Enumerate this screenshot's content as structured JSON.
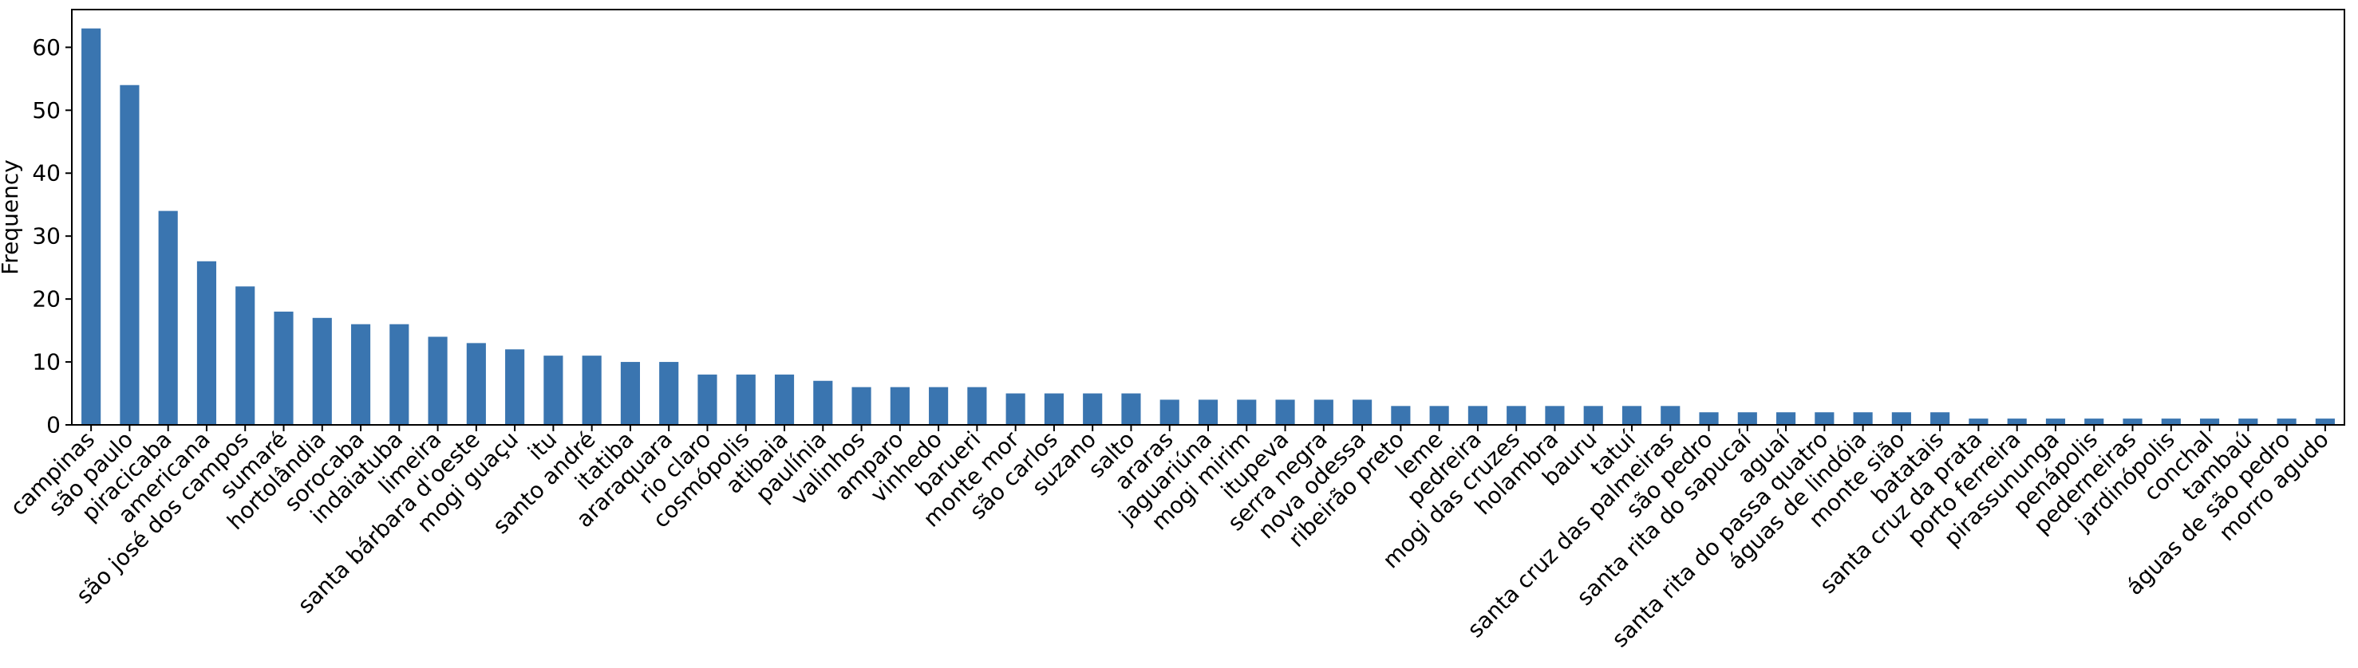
{
  "chart_data": {
    "type": "bar",
    "title": "",
    "xlabel": "",
    "ylabel": "Frequency",
    "ylim": [
      0,
      66
    ],
    "yticks": [
      0,
      10,
      20,
      30,
      40,
      50,
      60
    ],
    "grid": false,
    "bar_color": "#3a75b0",
    "categories": [
      "campinas",
      "são paulo",
      "piracicaba",
      "americana",
      "são josé dos campos",
      "sumaré",
      "hortolândia",
      "sorocaba",
      "indaiatuba",
      "limeira",
      "santa bárbara d'oeste",
      "mogi guaçu",
      "itu",
      "santo andré",
      "itatiba",
      "araraquara",
      "rio claro",
      "cosmópolis",
      "atibaia",
      "paulínia",
      "valinhos",
      "amparo",
      "vinhedo",
      "barueri",
      "monte mor",
      "são carlos",
      "suzano",
      "salto",
      "araras",
      "jaguariúna",
      "mogi mirim",
      "itupeva",
      "serra negra",
      "nova odessa",
      "ribeirão preto",
      "leme",
      "pedreira",
      "mogi das cruzes",
      "holambra",
      "bauru",
      "tatuí",
      "santa cruz das palmeiras",
      "são pedro",
      "santa rita do sapucaí",
      "aguaí",
      "santa rita do passa quatro",
      "águas de lindóia",
      "monte sião",
      "batatais",
      "santa cruz da prata",
      "porto ferreira",
      "pirassununga",
      "penápolis",
      "pederneiras",
      "jardinópolis",
      "conchal",
      "tambaú",
      "águas de são pedro",
      "morro agudo"
    ],
    "values": [
      63,
      54,
      34,
      26,
      22,
      18,
      17,
      16,
      16,
      14,
      13,
      12,
      11,
      11,
      10,
      10,
      8,
      8,
      8,
      7,
      6,
      6,
      6,
      6,
      5,
      5,
      5,
      5,
      4,
      4,
      4,
      4,
      4,
      4,
      3,
      3,
      3,
      3,
      3,
      3,
      3,
      3,
      2,
      2,
      2,
      2,
      2,
      2,
      2,
      1,
      1,
      1,
      1,
      1,
      1,
      1,
      1,
      1,
      1
    ]
  }
}
